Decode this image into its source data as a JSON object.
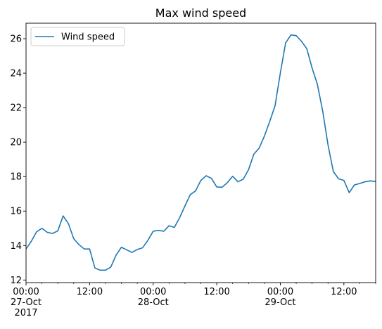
{
  "chart_data": {
    "type": "line",
    "title": "Max wind speed",
    "xlabel": "",
    "ylabel": "",
    "x_unit": "hours since 2017-10-27 00:00",
    "xlim": [
      0,
      66
    ],
    "ylim": [
      11.85,
      26.9
    ],
    "grid": false,
    "legend_position": "top-left",
    "x_ticks": [
      {
        "x": 0,
        "lines": [
          "00:00",
          "27-Oct",
          "2017"
        ]
      },
      {
        "x": 12,
        "lines": [
          "12:00"
        ]
      },
      {
        "x": 24,
        "lines": [
          "00:00",
          "28-Oct"
        ]
      },
      {
        "x": 36,
        "lines": [
          "12:00"
        ]
      },
      {
        "x": 48,
        "lines": [
          "00:00",
          "29-Oct"
        ]
      },
      {
        "x": 60,
        "lines": [
          "12:00"
        ]
      }
    ],
    "y_ticks": [
      {
        "y": 12,
        "label": "12"
      },
      {
        "y": 14,
        "label": "14"
      },
      {
        "y": 16,
        "label": "16"
      },
      {
        "y": 18,
        "label": "18"
      },
      {
        "y": 20,
        "label": "20"
      },
      {
        "y": 22,
        "label": "22"
      },
      {
        "y": 24,
        "label": "24"
      },
      {
        "y": 26,
        "label": "26"
      }
    ],
    "series": [
      {
        "name": "Wind speed",
        "color": "#1f77b4",
        "points": [
          [
            0,
            13.8
          ],
          [
            1,
            14.25
          ],
          [
            2,
            14.8
          ],
          [
            3,
            15.0
          ],
          [
            4,
            14.77
          ],
          [
            5,
            14.7
          ],
          [
            6,
            14.85
          ],
          [
            7,
            15.72
          ],
          [
            8,
            15.27
          ],
          [
            9,
            14.4
          ],
          [
            10,
            14.05
          ],
          [
            11,
            13.8
          ],
          [
            12,
            13.8
          ],
          [
            13,
            12.7
          ],
          [
            14,
            12.57
          ],
          [
            15,
            12.57
          ],
          [
            16,
            12.75
          ],
          [
            17,
            13.45
          ],
          [
            18,
            13.9
          ],
          [
            19,
            13.75
          ],
          [
            20,
            13.6
          ],
          [
            21,
            13.77
          ],
          [
            22,
            13.87
          ],
          [
            23,
            14.3
          ],
          [
            24,
            14.83
          ],
          [
            25,
            14.88
          ],
          [
            26,
            14.83
          ],
          [
            27,
            15.15
          ],
          [
            28,
            15.05
          ],
          [
            29,
            15.62
          ],
          [
            30,
            16.3
          ],
          [
            31,
            16.95
          ],
          [
            32,
            17.17
          ],
          [
            33,
            17.78
          ],
          [
            34,
            18.05
          ],
          [
            35,
            17.9
          ],
          [
            36,
            17.4
          ],
          [
            37,
            17.38
          ],
          [
            38,
            17.65
          ],
          [
            39,
            18.02
          ],
          [
            40,
            17.7
          ],
          [
            41,
            17.85
          ],
          [
            42,
            18.4
          ],
          [
            43,
            19.3
          ],
          [
            44,
            19.65
          ],
          [
            45,
            20.35
          ],
          [
            46,
            21.2
          ],
          [
            47,
            22.1
          ],
          [
            48,
            24.0
          ],
          [
            49,
            25.75
          ],
          [
            50,
            26.22
          ],
          [
            51,
            26.18
          ],
          [
            52,
            25.85
          ],
          [
            53,
            25.42
          ],
          [
            54,
            24.3
          ],
          [
            55,
            23.35
          ],
          [
            56,
            21.8
          ],
          [
            57,
            19.85
          ],
          [
            58,
            18.3
          ],
          [
            59,
            17.87
          ],
          [
            60,
            17.78
          ],
          [
            61,
            17.07
          ],
          [
            62,
            17.52
          ],
          [
            63,
            17.6
          ],
          [
            64,
            17.7
          ],
          [
            65,
            17.75
          ],
          [
            66,
            17.72
          ]
        ]
      }
    ]
  }
}
